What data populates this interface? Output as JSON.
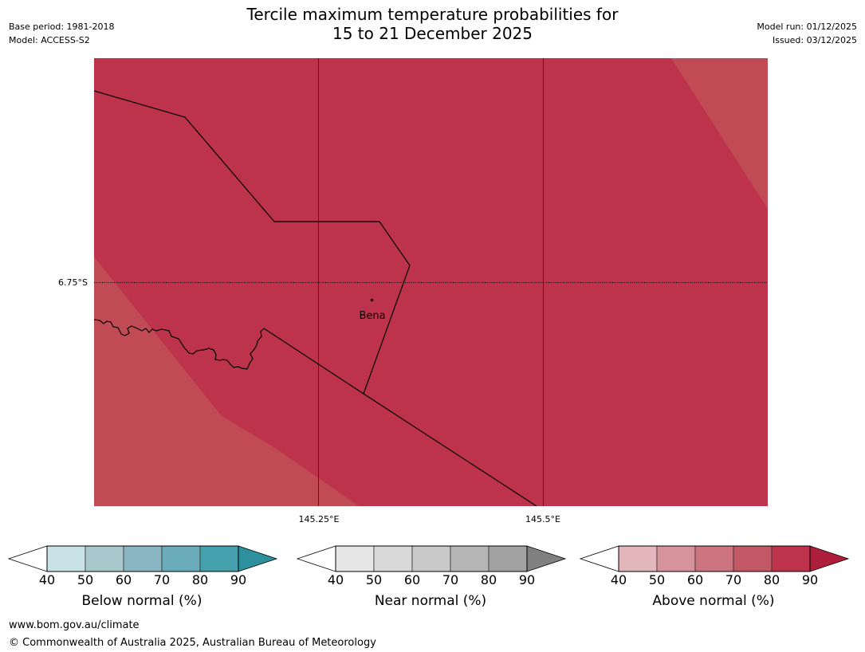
{
  "header": {
    "title_line1": "Tercile maximum temperature probabilities for",
    "title_line2": "15 to 21 December 2025",
    "base_period": "Base period: 1981-2018",
    "model": "Model: ACCESS-S2",
    "model_run": "Model run: 01/12/2025",
    "issued": "Issued: 03/12/2025"
  },
  "map": {
    "place_name": "Bena",
    "lat_label": "6.75°S",
    "lon_labels": [
      "145.25°E",
      "145.5°E"
    ],
    "colors": {
      "dominant": "#bd334b",
      "lighter": "#c04b55",
      "boundary": "#000000"
    }
  },
  "legends": [
    {
      "id": "below",
      "label": "Below normal (%)",
      "ticks": [
        "40",
        "50",
        "60",
        "70",
        "80",
        "90"
      ],
      "colors": [
        "#ffffff",
        "#c9e2e7",
        "#a8c8ce",
        "#89b6c2",
        "#6aacba",
        "#45a0ae",
        "#2e8f9d"
      ]
    },
    {
      "id": "near",
      "label": "Near normal (%)",
      "ticks": [
        "40",
        "50",
        "60",
        "70",
        "80",
        "90"
      ],
      "colors": [
        "#ffffff",
        "#e6e6e6",
        "#d9d9d9",
        "#c9c9c9",
        "#b6b6b6",
        "#a2a2a2",
        "#808080"
      ]
    },
    {
      "id": "above",
      "label": "Above normal (%)",
      "ticks": [
        "40",
        "50",
        "60",
        "70",
        "80",
        "90"
      ],
      "colors": [
        "#ffffff",
        "#e3b6bc",
        "#d6939c",
        "#cc7580",
        "#c25866",
        "#bd334b",
        "#ad1e3a"
      ]
    }
  ],
  "footer": {
    "website": "www.bom.gov.au/climate",
    "copyright": "© Commonwealth of Australia 2025, Australian Bureau of Meteorology"
  }
}
